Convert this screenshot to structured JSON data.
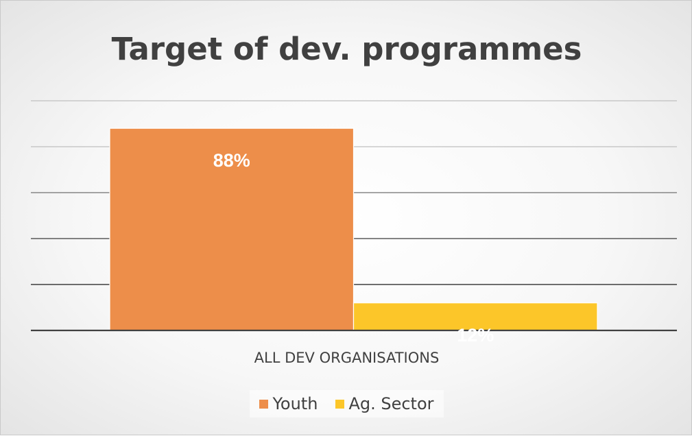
{
  "chart_data": {
    "type": "bar",
    "title": "Target of dev. programmes",
    "categories": [
      "ALL DEV ORGANISATIONS"
    ],
    "series": [
      {
        "name": "Youth",
        "values": [
          88
        ],
        "label": "88%",
        "color": "#ED8E4A"
      },
      {
        "name": "Ag. Sector",
        "values": [
          12
        ],
        "label": "12%",
        "color": "#FCC629"
      }
    ],
    "ylim": [
      0,
      100
    ],
    "grid": true,
    "legend_position": "bottom",
    "axis_color": "#404040",
    "gridline_color": "#bfbfbf"
  }
}
